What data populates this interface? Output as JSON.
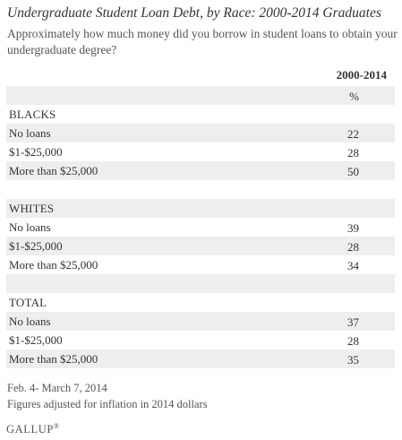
{
  "title": "Undergraduate Student Loan Debt, by Race: 2000-2014 Graduates",
  "question": "Approximately how much money did you borrow in student loans to obtain your undergraduate degree?",
  "column_header": "2000-2014",
  "unit": "%",
  "sections": [
    {
      "name": "BLACKS",
      "rows": [
        {
          "label": "No loans",
          "value": "22"
        },
        {
          "label": "$1-$25,000",
          "value": "28"
        },
        {
          "label": "More than $25,000",
          "value": "50"
        }
      ]
    },
    {
      "name": "WHITES",
      "rows": [
        {
          "label": "No loans",
          "value": "39"
        },
        {
          "label": "$1-$25,000",
          "value": "28"
        },
        {
          "label": "More than $25,000",
          "value": "34"
        }
      ]
    },
    {
      "name": "TOTAL",
      "rows": [
        {
          "label": "No loans",
          "value": "37"
        },
        {
          "label": "$1-$25,000",
          "value": "28"
        },
        {
          "label": "More than $25,000",
          "value": "35"
        }
      ]
    }
  ],
  "footnotes": [
    "Feb. 4- March 7, 2014",
    "Figures adjusted for inflation in 2014 dollars"
  ],
  "logo": {
    "text": "GALLUP",
    "mark": "®"
  }
}
